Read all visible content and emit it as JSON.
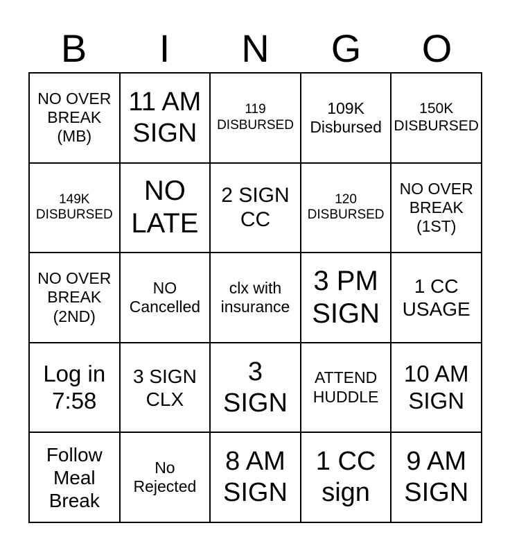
{
  "title": {
    "letters": [
      "B",
      "I",
      "N",
      "G",
      "O"
    ]
  },
  "grid": {
    "cells": [
      "NO OVER\nBREAK\n(MB)",
      "11 AM\nSIGN",
      "119\nDISBURSED",
      "109K\nDisbursed",
      "150K\nDISBURSED",
      "149K\nDISBURSED",
      "NO\nLATE",
      "2 SIGN\nCC",
      "120\nDISBURSED",
      "NO OVER\nBREAK\n(1ST)",
      "NO OVER\nBREAK\n(2ND)",
      "NO\nCancelled",
      "clx with\ninsurance",
      "3 PM\nSIGN",
      "1 CC\nUSAGE",
      "Log in\n7:58",
      "3 SIGN\nCLX",
      "3\nSIGN",
      "ATTEND\nHUDDLE",
      "10 AM\nSIGN",
      "Follow\nMeal\nBreak",
      "No\nRejected",
      "8 AM\nSIGN",
      "1 CC\nsign",
      "9 AM\nSIGN"
    ]
  },
  "colors": {
    "text": "#000000",
    "grid_lines": "#000000",
    "background": "#ffffff"
  }
}
